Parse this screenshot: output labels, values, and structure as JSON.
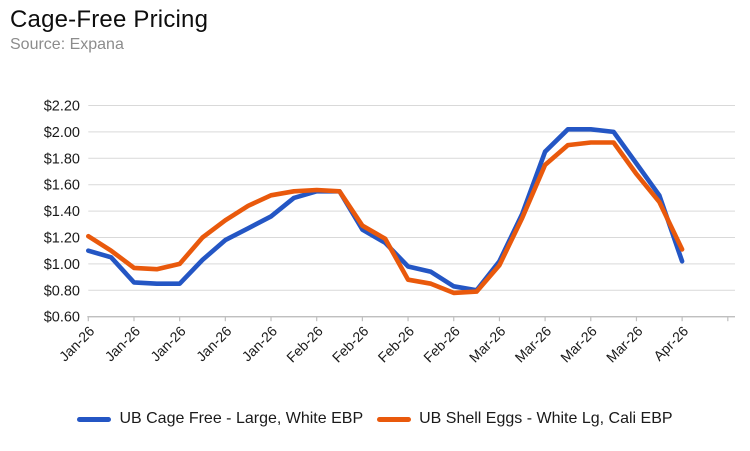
{
  "header": {
    "title": "Cage-Free Pricing",
    "source": "Source: Expana"
  },
  "colors": {
    "series1": "#2456C4",
    "series2": "#E9590C",
    "gridline": "#D9D9D9",
    "axis_line": "#BFBFBF",
    "axis_text": "#1a1a1a"
  },
  "chart_data": {
    "type": "line",
    "title": "Cage-Free Pricing",
    "source": "Source: Expana",
    "ylim": [
      0.6,
      2.2
    ],
    "y_tick_step": 0.2,
    "y_tick_labels": [
      "$0.60",
      "$0.80",
      "$1.00",
      "$1.20",
      "$1.40",
      "$1.60",
      "$1.80",
      "$2.00",
      "$2.20"
    ],
    "x_tick_labels": [
      "Jan-26",
      "Jan-26",
      "Jan-26",
      "Jan-26",
      "Jan-26",
      "Feb-26",
      "Feb-26",
      "Feb-26",
      "Feb-26",
      "Mar-26",
      "Mar-26",
      "Mar-26",
      "Mar-26",
      "Apr-26"
    ],
    "points_per_label": 2,
    "grid": "horizontal",
    "legend_position": "bottom",
    "series": [
      {
        "name": "UB Cage Free - Large, White EBP",
        "color": "#2456C4",
        "values": [
          1.1,
          1.05,
          0.86,
          0.85,
          0.85,
          1.03,
          1.18,
          1.27,
          1.36,
          1.5,
          1.55,
          1.55,
          1.26,
          1.16,
          0.98,
          0.94,
          0.83,
          0.8,
          1.02,
          1.38,
          1.85,
          2.02,
          2.02,
          2.0,
          1.76,
          1.52,
          1.02
        ]
      },
      {
        "name": "UB Shell Eggs - White Lg, Cali EBP",
        "color": "#E9590C",
        "values": [
          1.21,
          1.1,
          0.97,
          0.96,
          1.0,
          1.2,
          1.33,
          1.44,
          1.52,
          1.55,
          1.56,
          1.55,
          1.29,
          1.19,
          0.88,
          0.85,
          0.78,
          0.79,
          0.99,
          1.35,
          1.75,
          1.9,
          1.92,
          1.92,
          1.68,
          1.47,
          1.11
        ]
      }
    ]
  }
}
